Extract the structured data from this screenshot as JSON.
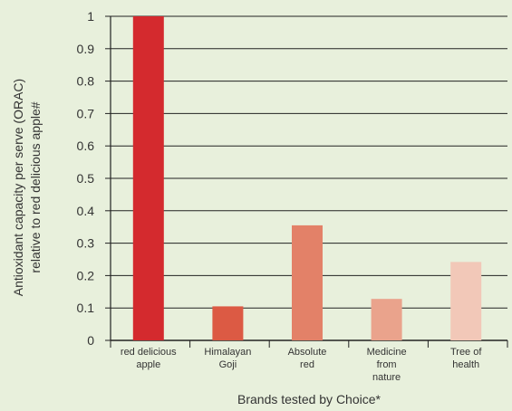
{
  "chart_data": {
    "type": "bar",
    "categories": [
      [
        "red delicious",
        "apple"
      ],
      [
        "Himalayan",
        "Goji"
      ],
      [
        "Absolute",
        "red"
      ],
      [
        "Medicine",
        "from",
        "nature"
      ],
      [
        "Tree of",
        "health"
      ]
    ],
    "values": [
      1.0,
      0.105,
      0.355,
      0.128,
      0.242
    ],
    "bar_colors": [
      "#d42a2e",
      "#dc5a44",
      "#e38168",
      "#eaa38c",
      "#f2c8b8"
    ],
    "ylim": [
      0,
      1
    ],
    "yticks": [
      0,
      0.1,
      0.2,
      0.3,
      0.4,
      0.5,
      0.6,
      0.7,
      0.8,
      0.9,
      1
    ],
    "ytick_labels": [
      "0",
      "0.1",
      "0.2",
      "0.3",
      "0.4",
      "0.5",
      "0.6",
      "0.7",
      "0.8",
      "0.9",
      "1"
    ],
    "ylabel": [
      "Antioxidant capacity per serve (ORAC)",
      "relative to red delicious apple#"
    ],
    "xlabel": "Brands tested by Choice*",
    "grid": true,
    "background_color": "#e8f0dc",
    "grid_color": "#222222"
  }
}
